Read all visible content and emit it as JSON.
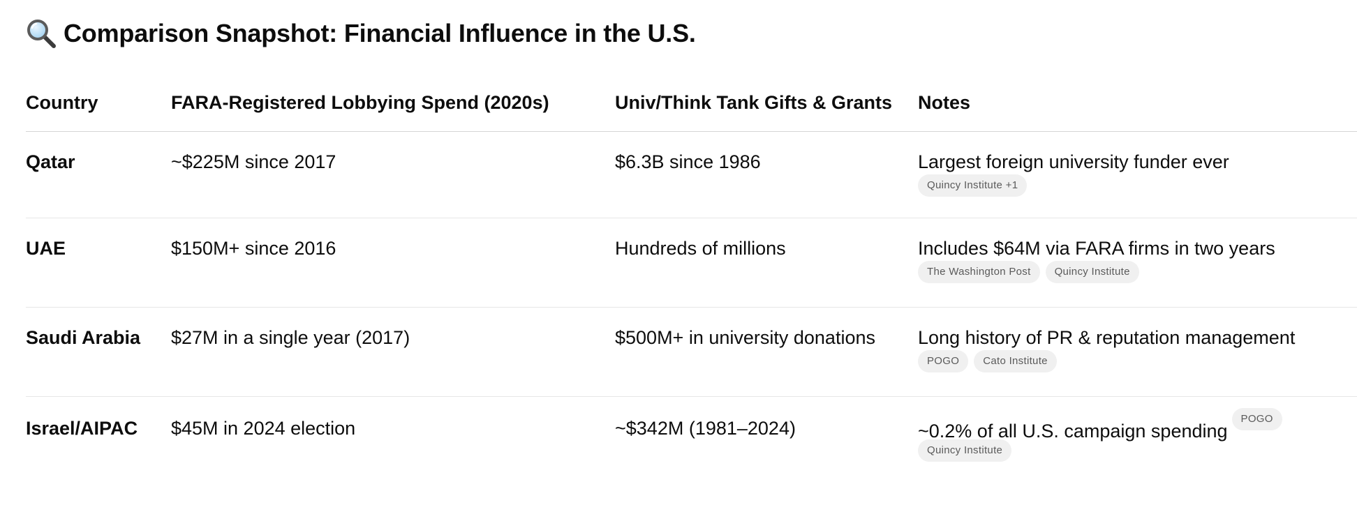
{
  "title": {
    "text": "Comparison Snapshot: Financial Influence in the U.S.",
    "icon": "magnifier-icon"
  },
  "table": {
    "headers": [
      "Country",
      "FARA-Registered Lobbying Spend (2020s)",
      "Univ/Think Tank Gifts & Grants",
      "Notes"
    ],
    "rows": [
      {
        "country": "Qatar",
        "lobbying": "~$225M since 2017",
        "gifts": "$6.3B since 1986",
        "note": "Largest foreign university funder ever",
        "inline_source": "",
        "sources": [
          "Quincy Institute +1"
        ]
      },
      {
        "country": "UAE",
        "lobbying": "$150M+ since 2016",
        "gifts": "Hundreds of millions",
        "note": "Includes $64M via FARA firms in two years",
        "inline_source": "",
        "sources": [
          "The Washington Post",
          "Quincy Institute"
        ]
      },
      {
        "country": "Saudi Arabia",
        "lobbying": "$27M in a single year (2017)",
        "gifts": "$500M+ in university donations",
        "note": "Long history of PR & reputation management",
        "inline_source": "",
        "sources": [
          "POGO",
          "Cato Institute"
        ]
      },
      {
        "country": "Israel/AIPAC",
        "lobbying": "$45M in 2024 election",
        "gifts": "~$342M (1981–2024)",
        "note": "~0.2% of all U.S. campaign spending",
        "inline_source": "POGO",
        "sources": [
          "Quincy Institute"
        ]
      }
    ]
  }
}
